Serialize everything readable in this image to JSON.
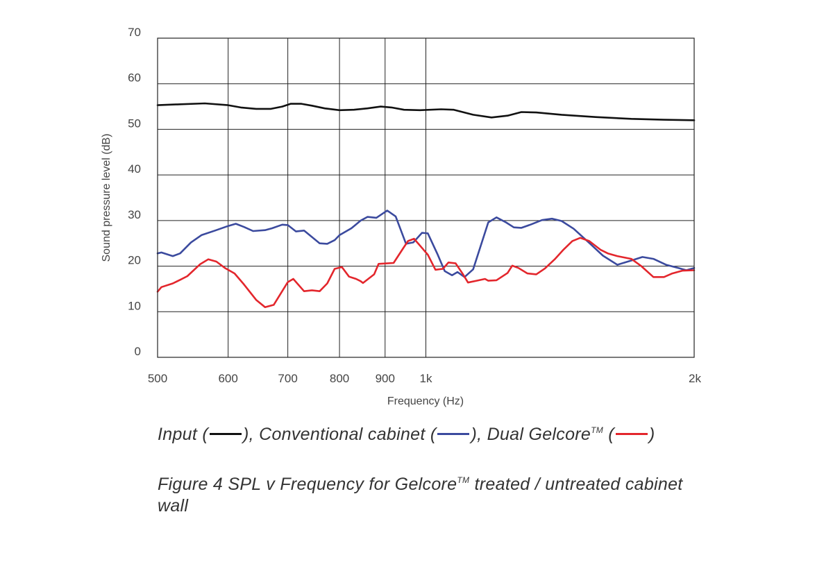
{
  "chart_data": {
    "type": "line",
    "title": "",
    "xlabel": "Frequency (Hz)",
    "ylabel": "Sound pressure level (dB)",
    "x_scale": "log",
    "xlim": [
      500,
      2000
    ],
    "ylim": [
      0,
      70
    ],
    "x_gridlines": [
      600,
      700,
      800,
      900,
      1000
    ],
    "x_ticks": [
      {
        "value": 500,
        "label": "500"
      },
      {
        "value": 600,
        "label": "600"
      },
      {
        "value": 700,
        "label": "700"
      },
      {
        "value": 800,
        "label": "800"
      },
      {
        "value": 900,
        "label": "900"
      },
      {
        "value": 1000,
        "label": "1k"
      },
      {
        "value": 2000,
        "label": "2k"
      }
    ],
    "y_ticks": [
      0,
      10,
      20,
      30,
      40,
      50,
      60,
      70
    ],
    "grid": true,
    "series": [
      {
        "name": "Input",
        "color": "#111111",
        "points": [
          [
            500,
            55.3
          ],
          [
            530,
            55.5
          ],
          [
            565,
            55.7
          ],
          [
            600,
            55.3
          ],
          [
            620,
            54.8
          ],
          [
            645,
            54.5
          ],
          [
            670,
            54.5
          ],
          [
            690,
            55.0
          ],
          [
            705,
            55.6
          ],
          [
            725,
            55.6
          ],
          [
            745,
            55.2
          ],
          [
            770,
            54.6
          ],
          [
            800,
            54.2
          ],
          [
            830,
            54.3
          ],
          [
            860,
            54.6
          ],
          [
            890,
            55.0
          ],
          [
            915,
            54.8
          ],
          [
            945,
            54.3
          ],
          [
            985,
            54.2
          ],
          [
            1040,
            54.4
          ],
          [
            1075,
            54.3
          ],
          [
            1130,
            53.2
          ],
          [
            1185,
            52.6
          ],
          [
            1235,
            53.0
          ],
          [
            1280,
            53.8
          ],
          [
            1330,
            53.7
          ],
          [
            1420,
            53.2
          ],
          [
            1550,
            52.7
          ],
          [
            1700,
            52.3
          ],
          [
            1850,
            52.1
          ],
          [
            2000,
            52.0
          ]
        ]
      },
      {
        "name": "Conventional cabinet",
        "color": "#3b4a9e",
        "points": [
          [
            500,
            22.8
          ],
          [
            505,
            23.0
          ],
          [
            520,
            22.2
          ],
          [
            530,
            22.8
          ],
          [
            545,
            25.2
          ],
          [
            560,
            26.8
          ],
          [
            580,
            27.8
          ],
          [
            600,
            28.8
          ],
          [
            612,
            29.3
          ],
          [
            625,
            28.6
          ],
          [
            640,
            27.7
          ],
          [
            660,
            27.9
          ],
          [
            672,
            28.3
          ],
          [
            690,
            29.1
          ],
          [
            700,
            29.0
          ],
          [
            715,
            27.6
          ],
          [
            730,
            27.8
          ],
          [
            760,
            25.0
          ],
          [
            775,
            24.9
          ],
          [
            790,
            25.7
          ],
          [
            800,
            26.8
          ],
          [
            825,
            28.3
          ],
          [
            845,
            30.0
          ],
          [
            860,
            30.8
          ],
          [
            880,
            30.6
          ],
          [
            905,
            32.2
          ],
          [
            925,
            30.9
          ],
          [
            950,
            24.9
          ],
          [
            968,
            25.2
          ],
          [
            990,
            27.3
          ],
          [
            1005,
            27.2
          ],
          [
            1030,
            22.7
          ],
          [
            1050,
            18.9
          ],
          [
            1070,
            18.0
          ],
          [
            1085,
            18.7
          ],
          [
            1105,
            17.6
          ],
          [
            1130,
            19.3
          ],
          [
            1175,
            29.6
          ],
          [
            1200,
            30.7
          ],
          [
            1230,
            29.6
          ],
          [
            1255,
            28.5
          ],
          [
            1280,
            28.4
          ],
          [
            1310,
            29.1
          ],
          [
            1350,
            30.1
          ],
          [
            1385,
            30.4
          ],
          [
            1420,
            29.9
          ],
          [
            1465,
            28.2
          ],
          [
            1525,
            25.1
          ],
          [
            1580,
            22.3
          ],
          [
            1640,
            20.3
          ],
          [
            1705,
            21.3
          ],
          [
            1750,
            22.0
          ],
          [
            1800,
            21.6
          ],
          [
            1860,
            20.3
          ],
          [
            1920,
            19.6
          ],
          [
            1960,
            19.1
          ],
          [
            2000,
            19.6
          ]
        ]
      },
      {
        "name": "Dual Gelcore",
        "color": "#e3262c",
        "points": [
          [
            500,
            14.4
          ],
          [
            505,
            15.4
          ],
          [
            520,
            16.2
          ],
          [
            530,
            17.0
          ],
          [
            540,
            17.8
          ],
          [
            558,
            20.4
          ],
          [
            570,
            21.5
          ],
          [
            582,
            21.0
          ],
          [
            595,
            19.6
          ],
          [
            610,
            18.4
          ],
          [
            625,
            16.0
          ],
          [
            645,
            12.6
          ],
          [
            660,
            11.0
          ],
          [
            675,
            11.5
          ],
          [
            700,
            16.5
          ],
          [
            710,
            17.2
          ],
          [
            730,
            14.5
          ],
          [
            745,
            14.7
          ],
          [
            760,
            14.5
          ],
          [
            775,
            16.2
          ],
          [
            790,
            19.4
          ],
          [
            805,
            19.8
          ],
          [
            820,
            17.7
          ],
          [
            835,
            17.2
          ],
          [
            845,
            16.7
          ],
          [
            850,
            16.3
          ],
          [
            875,
            18.2
          ],
          [
            885,
            20.5
          ],
          [
            905,
            20.6
          ],
          [
            920,
            20.7
          ],
          [
            945,
            24.2
          ],
          [
            955,
            25.5
          ],
          [
            970,
            26.0
          ],
          [
            990,
            24.0
          ],
          [
            1005,
            22.5
          ],
          [
            1025,
            19.2
          ],
          [
            1045,
            19.4
          ],
          [
            1060,
            20.8
          ],
          [
            1080,
            20.6
          ],
          [
            1100,
            18.3
          ],
          [
            1115,
            16.4
          ],
          [
            1140,
            16.8
          ],
          [
            1165,
            17.2
          ],
          [
            1175,
            16.8
          ],
          [
            1200,
            16.9
          ],
          [
            1235,
            18.5
          ],
          [
            1250,
            20.1
          ],
          [
            1270,
            19.6
          ],
          [
            1300,
            18.4
          ],
          [
            1330,
            18.2
          ],
          [
            1360,
            19.5
          ],
          [
            1395,
            21.5
          ],
          [
            1425,
            23.5
          ],
          [
            1460,
            25.5
          ],
          [
            1490,
            26.2
          ],
          [
            1525,
            25.5
          ],
          [
            1570,
            23.6
          ],
          [
            1600,
            22.8
          ],
          [
            1640,
            22.2
          ],
          [
            1700,
            21.6
          ],
          [
            1745,
            20.0
          ],
          [
            1800,
            17.6
          ],
          [
            1850,
            17.6
          ],
          [
            1890,
            18.4
          ],
          [
            1940,
            19.0
          ],
          [
            2000,
            19.1
          ]
        ]
      }
    ]
  },
  "legend": {
    "input_label": "Input (",
    "input_close": "), ",
    "conventional_label": "Conventional cabinet (",
    "conventional_close": "), ",
    "gelcore_label": "Dual Gelcore",
    "gelcore_tm": "TM",
    "gelcore_open": " (",
    "gelcore_close": ")"
  },
  "caption": {
    "part1": "Figure 4 SPL v Frequency for Gelcore",
    "tm": "TM",
    "part2": " treated / untreated cabinet wall"
  }
}
